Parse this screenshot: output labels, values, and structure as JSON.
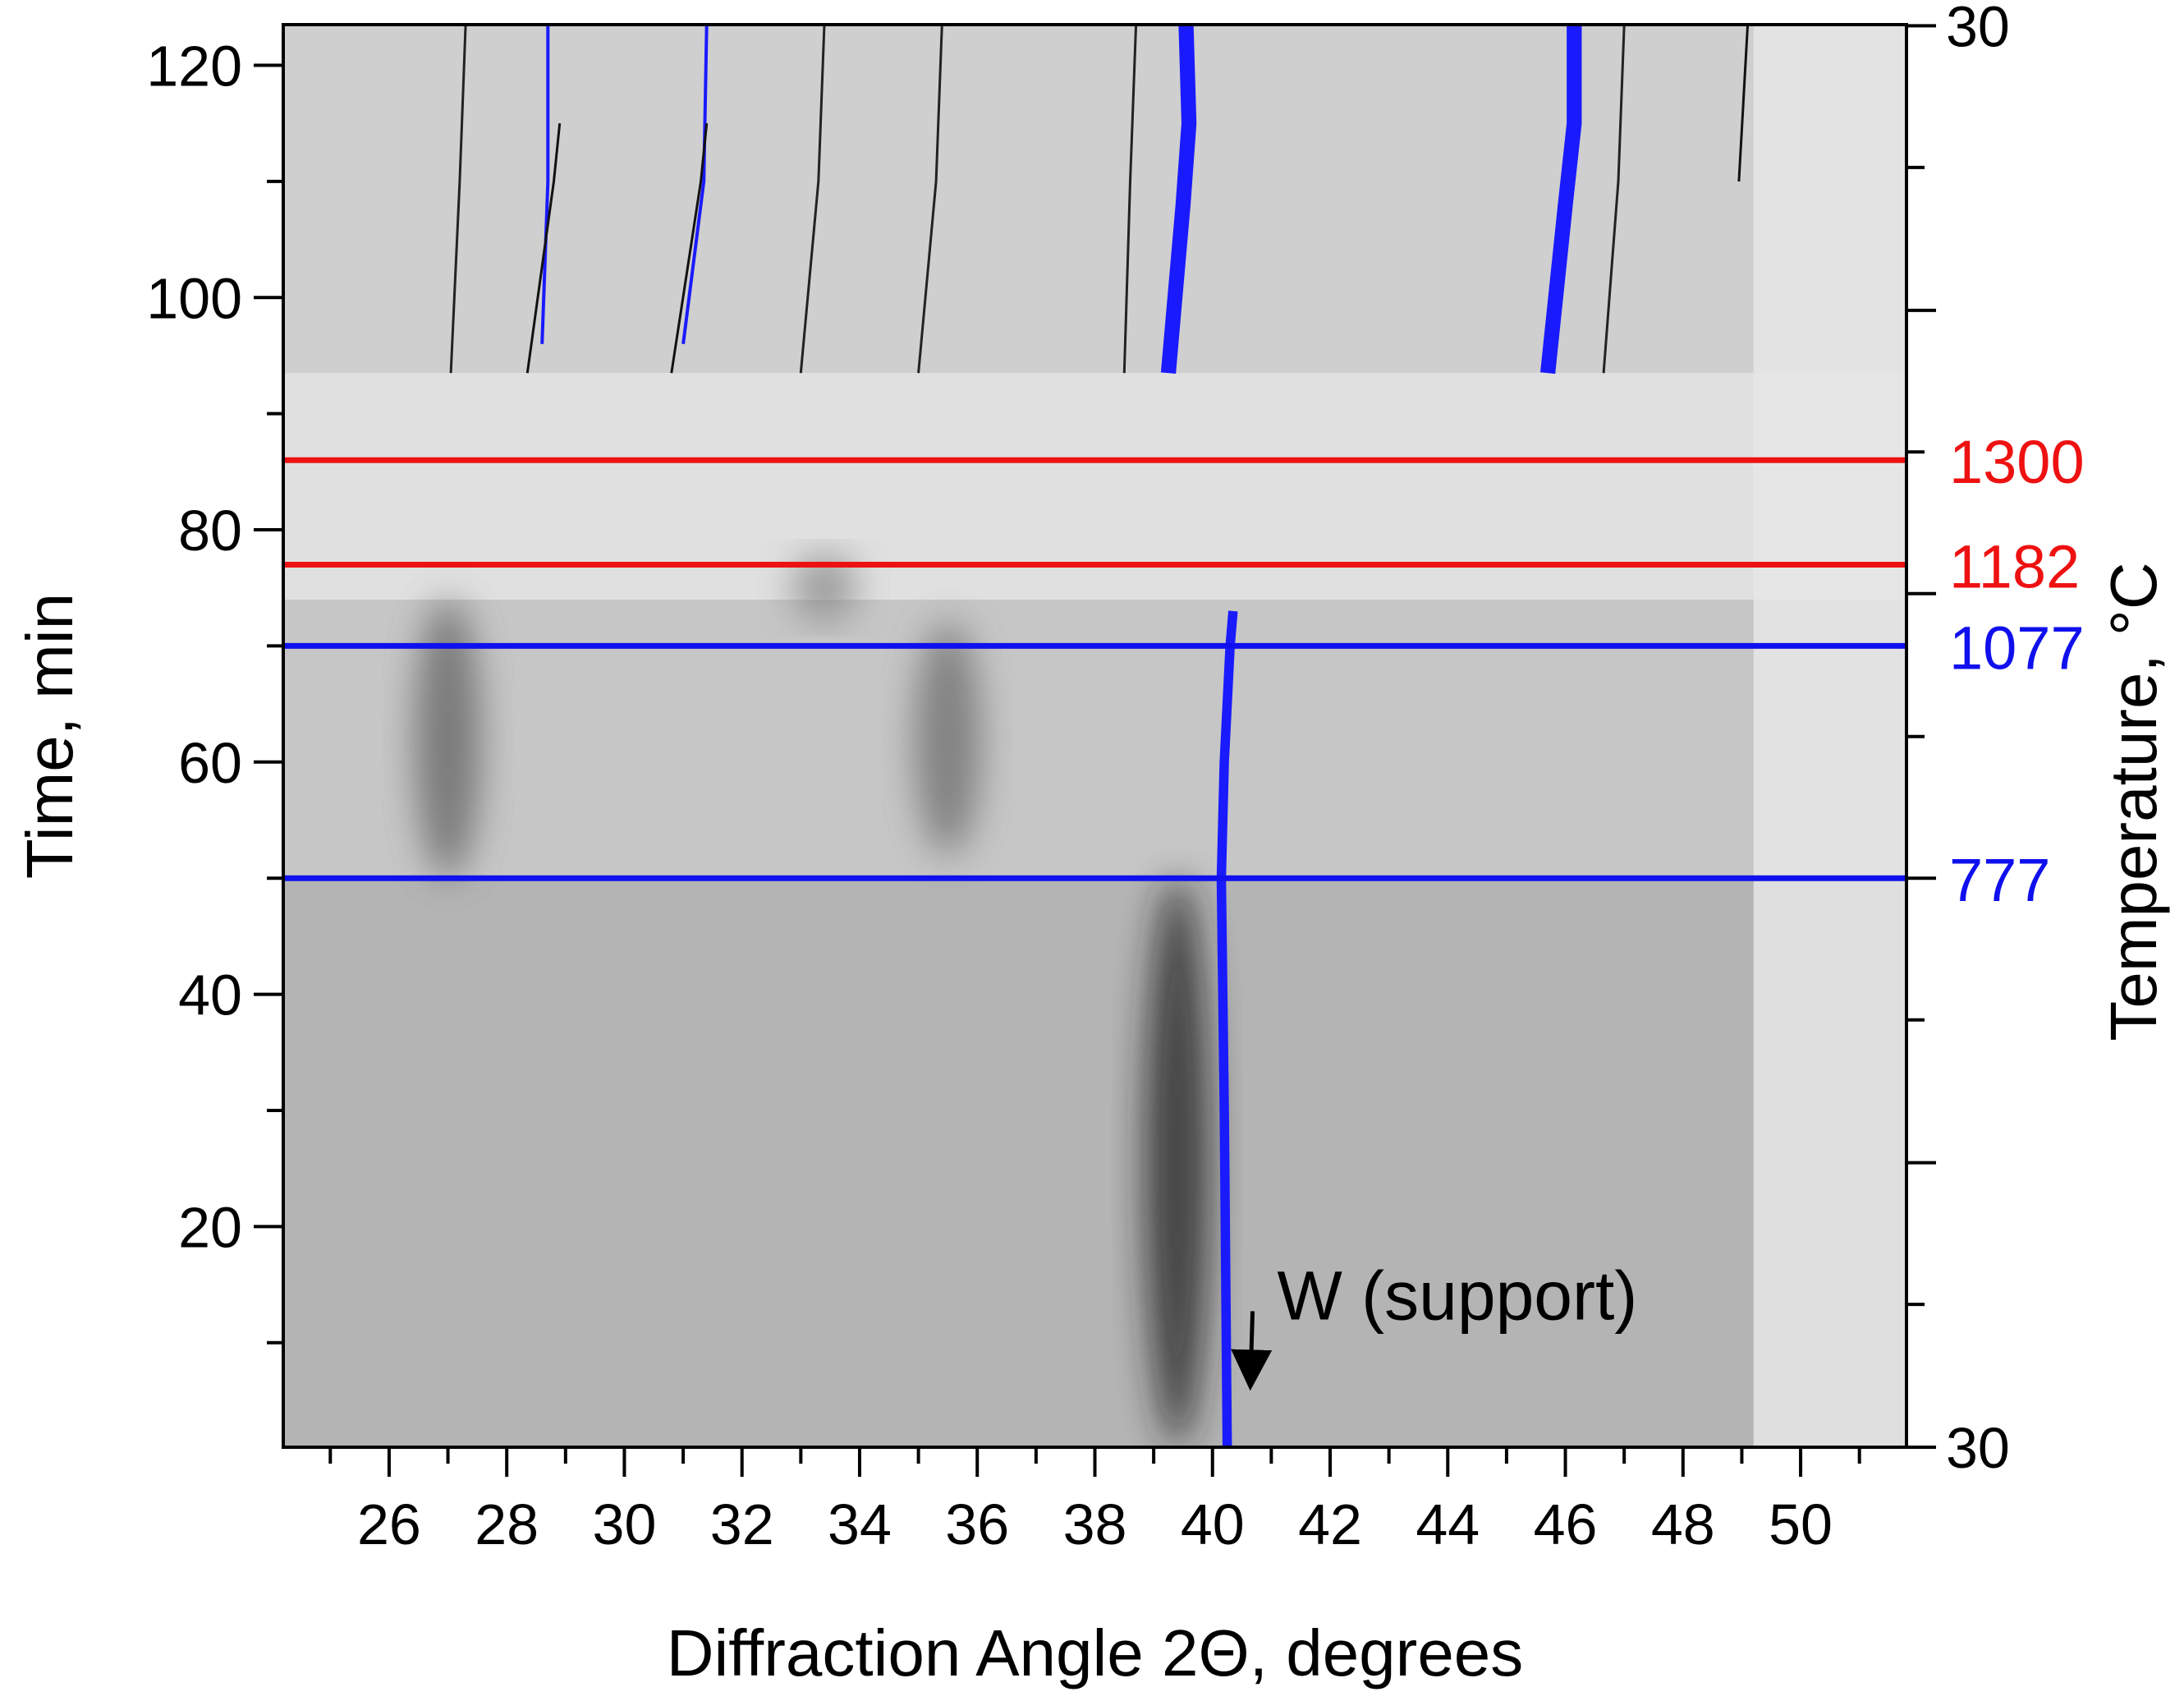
{
  "chart_data": {
    "type": "heatmap",
    "title": "",
    "xlabel": "Diffraction Angle 2Θ, degrees",
    "ylabel": "Time, min",
    "y2label": "Temperature, °C",
    "xlim": [
      24.2,
      51.8
    ],
    "ylim": [
      1,
      123.5
    ],
    "x_major_ticks": [
      26,
      28,
      30,
      32,
      34,
      36,
      38,
      40,
      42,
      44,
      46,
      48,
      50
    ],
    "x_minor_ticks": [
      25,
      27,
      29,
      31,
      33,
      35,
      37,
      39,
      41,
      43,
      45,
      47,
      49,
      51
    ],
    "y_major_ticks": [
      20,
      40,
      60,
      80,
      100,
      120
    ],
    "y_minor_ticks": [
      10,
      30,
      50,
      70,
      90,
      110
    ],
    "y2_tick_times": [
      1,
      13.3,
      25.5,
      37.8,
      50,
      62.2,
      74.5,
      86.7,
      98.9,
      111.2,
      123.4
    ],
    "y2_end_labels": [
      {
        "label": "30",
        "time": 1
      },
      {
        "label": "30",
        "time": 123.4
      }
    ],
    "temperature_lines": [
      {
        "time": 50,
        "temperature": "777",
        "color": "#1010ee"
      },
      {
        "time": 70,
        "temperature": "1077",
        "color": "#1010ee"
      },
      {
        "time": 77,
        "temperature": "1182",
        "color": "#ee1111"
      },
      {
        "time": 86,
        "temperature": "1300",
        "color": "#ee1111"
      }
    ],
    "bands": [
      {
        "t0": 1,
        "t1": 50,
        "shade": "#b4b4b4"
      },
      {
        "t0": 50,
        "t1": 74,
        "shade": "#c6c6c6"
      },
      {
        "t0": 74,
        "t1": 93.5,
        "shade": "#e0e0e0"
      },
      {
        "t0": 93.5,
        "t1": 123.5,
        "shade": "#cfcfcf"
      }
    ],
    "traces": [
      {
        "name": "W",
        "color": "#1a1aff",
        "width": 1.0,
        "points": [
          [
            40.25,
            1
          ],
          [
            40.2,
            30
          ],
          [
            40.15,
            50
          ],
          [
            40.2,
            60
          ],
          [
            40.3,
            70
          ],
          [
            40.35,
            73
          ]
        ]
      },
      {
        "name": "",
        "color": "#1a1aff",
        "width": 1.6,
        "points": [
          [
            39.25,
            93.5
          ],
          [
            39.5,
            108
          ],
          [
            39.6,
            115
          ],
          [
            39.55,
            123.5
          ]
        ]
      },
      {
        "name": "",
        "color": "#1a1aff",
        "width": 1.6,
        "points": [
          [
            45.7,
            93.5
          ],
          [
            46.0,
            108
          ],
          [
            46.15,
            115
          ],
          [
            46.15,
            123.5
          ]
        ]
      },
      {
        "name": "",
        "color": "#1a1aff",
        "width": 0.35,
        "points": [
          [
            28.6,
            96
          ],
          [
            28.7,
            110
          ],
          [
            28.7,
            123.5
          ]
        ]
      },
      {
        "name": "",
        "color": "#1a1aff",
        "width": 0.35,
        "points": [
          [
            31.0,
            96
          ],
          [
            31.35,
            110
          ],
          [
            31.4,
            123.5
          ]
        ]
      },
      {
        "name": "",
        "color": "#111111",
        "width": 0.25,
        "points": [
          [
            28.35,
            93.5
          ],
          [
            28.8,
            110
          ],
          [
            28.9,
            115
          ]
        ]
      },
      {
        "name": "",
        "color": "#111111",
        "width": 0.25,
        "points": [
          [
            30.8,
            93.5
          ],
          [
            31.3,
            110
          ],
          [
            31.4,
            115
          ]
        ]
      },
      {
        "name": "",
        "color": "#222222",
        "width": 0.15,
        "points": [
          [
            27.05,
            93.5
          ],
          [
            27.2,
            110
          ],
          [
            27.3,
            123.5
          ]
        ]
      },
      {
        "name": "",
        "color": "#222222",
        "width": 0.15,
        "points": [
          [
            33.0,
            93.5
          ],
          [
            33.3,
            110
          ],
          [
            33.4,
            123.5
          ]
        ]
      },
      {
        "name": "",
        "color": "#222222",
        "width": 0.15,
        "points": [
          [
            35.0,
            93.5
          ],
          [
            35.3,
            110
          ],
          [
            35.4,
            123.5
          ]
        ]
      },
      {
        "name": "",
        "color": "#222222",
        "width": 0.15,
        "points": [
          [
            38.5,
            93.5
          ],
          [
            38.6,
            110
          ],
          [
            38.7,
            123.5
          ]
        ]
      },
      {
        "name": "",
        "color": "#222222",
        "width": 0.15,
        "points": [
          [
            46.65,
            93.5
          ],
          [
            46.9,
            110
          ],
          [
            47.0,
            123.5
          ]
        ]
      },
      {
        "name": "",
        "color": "#111111",
        "width": 0.2,
        "points": [
          [
            48.95,
            110
          ],
          [
            49.1,
            123.5
          ]
        ]
      }
    ],
    "diffuse_features": [
      {
        "x": 27.0,
        "t0": 50,
        "t1": 74,
        "color": "#606060"
      },
      {
        "x": 35.5,
        "t0": 52,
        "t1": 72,
        "color": "#6a6a6a"
      },
      {
        "x": 39.4,
        "t0": 1,
        "t1": 50,
        "color": "#1e1e1e"
      },
      {
        "x": 33.4,
        "t0": 72,
        "t1": 78,
        "color": "#888888"
      }
    ],
    "light_right_region": {
      "x0": 49.2,
      "color": "#e6e6e6"
    },
    "annotation": {
      "text": "W (support)",
      "text_x": 41.1,
      "text_t": 12,
      "arrow_to_x": 40.45,
      "arrow_to_t": 6
    }
  }
}
